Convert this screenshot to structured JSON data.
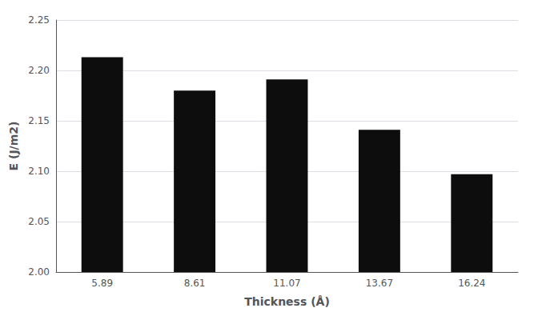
{
  "chart_data": {
    "type": "bar",
    "categories": [
      "5.89",
      "8.61",
      "11.07",
      "13.67",
      "16.24"
    ],
    "values": [
      2.213,
      2.18,
      2.191,
      2.141,
      2.097
    ],
    "color": "#0d0d0d",
    "xlabel": "Thickness (Å)",
    "ylabel": "E (J/m2)",
    "ylim": [
      2.0,
      2.25
    ],
    "yticks": [
      {
        "value": 2.0,
        "label": "2.00"
      },
      2.05,
      {
        "value": 2.1,
        "label": "2.10"
      },
      2.15,
      {
        "value": 2.2,
        "label": "2.20"
      },
      2.25
    ],
    "grid": true
  }
}
